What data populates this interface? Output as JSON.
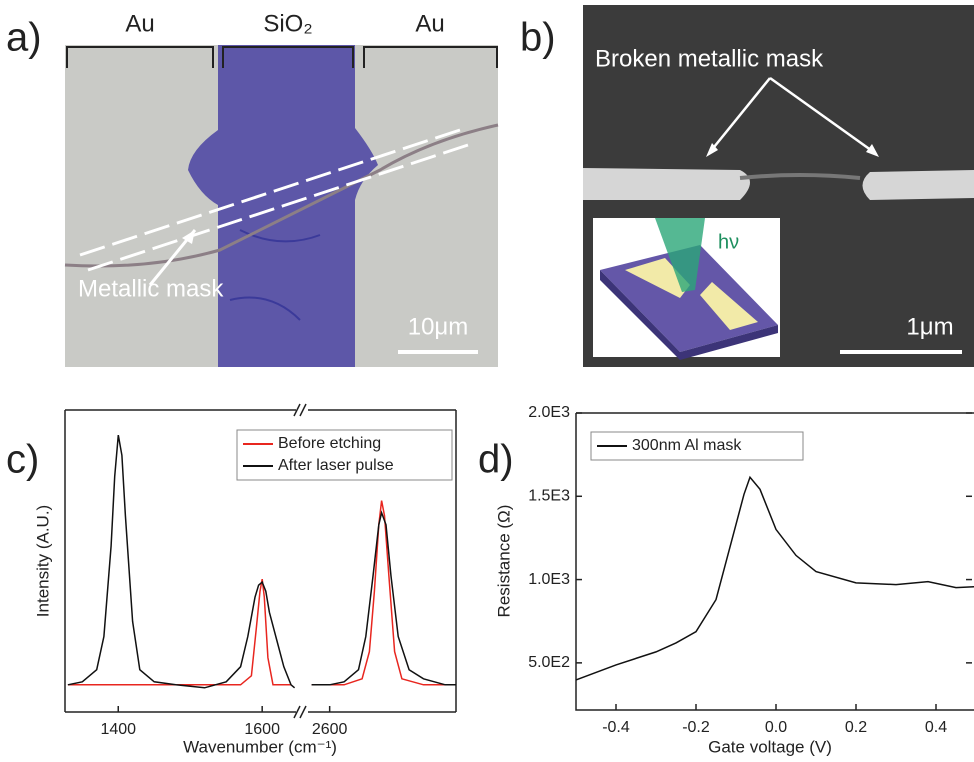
{
  "panels": {
    "a": {
      "label": "a)",
      "regions": [
        "Au",
        "SiO₂",
        "Au"
      ],
      "annotation": "Metallic mask",
      "scale_bar": "10μm"
    },
    "b": {
      "label": "b)",
      "annotation": "Broken metallic mask",
      "inset_label": "hν",
      "scale_bar": "1μm"
    }
  },
  "chart_data": [
    {
      "type": "broken-line",
      "panel_label": "c)",
      "xlabel": "Wavenumber (cm⁻¹)",
      "ylabel": "Intensity (A.U.)",
      "x_segments": [
        {
          "xlim": [
            1326,
            1647
          ],
          "xticks": [
            1400,
            1600
          ]
        },
        {
          "xlim": [
            2570,
            2775
          ],
          "xticks": [
            2600
          ]
        }
      ],
      "ylim": [
        0,
        1
      ],
      "legend": "top-right",
      "series": [
        {
          "name": "Before etching",
          "color": "#e8261f",
          "x": [
            [
              1330,
              1400,
              1500,
              1570,
              1585,
              1592,
              1597,
              1600,
              1603,
              1608,
              1615,
              1640
            ],
            [
              2575,
              2620,
              2645,
              2655,
              2662,
              2668,
              2672,
              2676,
              2682,
              2690,
              2700,
              2730,
              2775
            ]
          ],
          "values": [
            [
              0.09,
              0.09,
              0.09,
              0.09,
              0.12,
              0.28,
              0.4,
              0.44,
              0.38,
              0.18,
              0.09,
              0.09
            ],
            [
              0.09,
              0.09,
              0.11,
              0.2,
              0.4,
              0.62,
              0.7,
              0.65,
              0.45,
              0.2,
              0.11,
              0.09,
              0.09
            ]
          ]
        },
        {
          "name": "After laser pulse",
          "color": "#111111",
          "x": [
            [
              1330,
              1350,
              1370,
              1380,
              1390,
              1395,
              1400,
              1405,
              1410,
              1420,
              1430,
              1450,
              1480,
              1520,
              1550,
              1570,
              1580,
              1590,
              1595,
              1600,
              1605,
              1610,
              1620,
              1630,
              1640,
              1645
            ],
            [
              2575,
              2600,
              2620,
              2640,
              2650,
              2660,
              2668,
              2672,
              2678,
              2685,
              2695,
              2710,
              2730,
              2760,
              2775
            ]
          ],
          "values": [
            [
              0.09,
              0.1,
              0.14,
              0.25,
              0.55,
              0.78,
              0.917,
              0.85,
              0.65,
              0.3,
              0.14,
              0.1,
              0.09,
              0.08,
              0.1,
              0.15,
              0.25,
              0.38,
              0.42,
              0.43,
              0.4,
              0.33,
              0.24,
              0.15,
              0.09,
              0.08
            ],
            [
              0.09,
              0.09,
              0.1,
              0.14,
              0.25,
              0.45,
              0.62,
              0.66,
              0.62,
              0.45,
              0.25,
              0.14,
              0.11,
              0.09,
              0.09
            ]
          ]
        }
      ]
    },
    {
      "type": "line",
      "panel_label": "d)",
      "xlabel": "Gate voltage (V)",
      "ylabel": "Resistance (Ω)",
      "xlim": [
        -0.5,
        0.5
      ],
      "xticks": [
        -0.4,
        -0.2,
        {
          "value": 0,
          "label": "0.0"
        },
        0.2,
        0.4
      ],
      "ylim": [
        217,
        2000
      ],
      "yticks": [
        {
          "value": 500,
          "label": "5.0E2"
        },
        {
          "value": 1000,
          "label": "1.0E3"
        },
        {
          "value": 1500,
          "label": "1.5E3"
        },
        {
          "value": 2000,
          "label": "2.0E3"
        }
      ],
      "legend": "top-left",
      "series": [
        {
          "name": "300nm Al mask",
          "color": "#111111",
          "x": [
            -0.5,
            -0.4,
            -0.3,
            -0.25,
            -0.2,
            -0.15,
            -0.1,
            -0.08,
            -0.065,
            -0.04,
            0,
            0.05,
            0.1,
            0.2,
            0.3,
            0.38,
            0.45,
            0.5
          ],
          "values": [
            398,
            488,
            566,
            620,
            687,
            880,
            1331,
            1512,
            1614,
            1542,
            1301,
            1145,
            1048,
            980,
            970,
            988,
            952,
            958
          ]
        }
      ]
    }
  ]
}
